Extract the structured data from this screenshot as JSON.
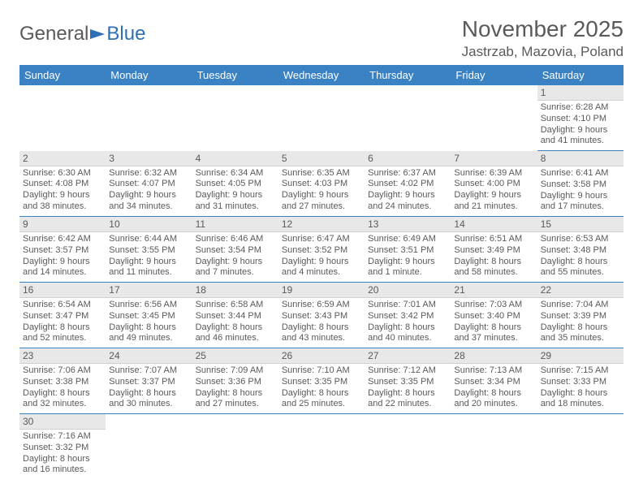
{
  "logo": {
    "text_gray": "General",
    "text_blue": "Blue"
  },
  "title": "November 2025",
  "location": "Jastrzab, Mazovia, Poland",
  "colors": {
    "header_bg": "#3b82c4",
    "header_text": "#ffffff",
    "daynum_bg": "#e8e8e8",
    "text": "#5a5a5a",
    "row_border": "#3b82c4"
  },
  "day_headers": [
    "Sunday",
    "Monday",
    "Tuesday",
    "Wednesday",
    "Thursday",
    "Friday",
    "Saturday"
  ],
  "weeks": [
    [
      null,
      null,
      null,
      null,
      null,
      null,
      {
        "n": "1",
        "sr": "6:28 AM",
        "ss": "4:10 PM",
        "dl": "9 hours and 41 minutes."
      }
    ],
    [
      {
        "n": "2",
        "sr": "6:30 AM",
        "ss": "4:08 PM",
        "dl": "9 hours and 38 minutes."
      },
      {
        "n": "3",
        "sr": "6:32 AM",
        "ss": "4:07 PM",
        "dl": "9 hours and 34 minutes."
      },
      {
        "n": "4",
        "sr": "6:34 AM",
        "ss": "4:05 PM",
        "dl": "9 hours and 31 minutes."
      },
      {
        "n": "5",
        "sr": "6:35 AM",
        "ss": "4:03 PM",
        "dl": "9 hours and 27 minutes."
      },
      {
        "n": "6",
        "sr": "6:37 AM",
        "ss": "4:02 PM",
        "dl": "9 hours and 24 minutes."
      },
      {
        "n": "7",
        "sr": "6:39 AM",
        "ss": "4:00 PM",
        "dl": "9 hours and 21 minutes."
      },
      {
        "n": "8",
        "sr": "6:41 AM",
        "ss": "3:58 PM",
        "dl": "9 hours and 17 minutes."
      }
    ],
    [
      {
        "n": "9",
        "sr": "6:42 AM",
        "ss": "3:57 PM",
        "dl": "9 hours and 14 minutes."
      },
      {
        "n": "10",
        "sr": "6:44 AM",
        "ss": "3:55 PM",
        "dl": "9 hours and 11 minutes."
      },
      {
        "n": "11",
        "sr": "6:46 AM",
        "ss": "3:54 PM",
        "dl": "9 hours and 7 minutes."
      },
      {
        "n": "12",
        "sr": "6:47 AM",
        "ss": "3:52 PM",
        "dl": "9 hours and 4 minutes."
      },
      {
        "n": "13",
        "sr": "6:49 AM",
        "ss": "3:51 PM",
        "dl": "9 hours and 1 minute."
      },
      {
        "n": "14",
        "sr": "6:51 AM",
        "ss": "3:49 PM",
        "dl": "8 hours and 58 minutes."
      },
      {
        "n": "15",
        "sr": "6:53 AM",
        "ss": "3:48 PM",
        "dl": "8 hours and 55 minutes."
      }
    ],
    [
      {
        "n": "16",
        "sr": "6:54 AM",
        "ss": "3:47 PM",
        "dl": "8 hours and 52 minutes."
      },
      {
        "n": "17",
        "sr": "6:56 AM",
        "ss": "3:45 PM",
        "dl": "8 hours and 49 minutes."
      },
      {
        "n": "18",
        "sr": "6:58 AM",
        "ss": "3:44 PM",
        "dl": "8 hours and 46 minutes."
      },
      {
        "n": "19",
        "sr": "6:59 AM",
        "ss": "3:43 PM",
        "dl": "8 hours and 43 minutes."
      },
      {
        "n": "20",
        "sr": "7:01 AM",
        "ss": "3:42 PM",
        "dl": "8 hours and 40 minutes."
      },
      {
        "n": "21",
        "sr": "7:03 AM",
        "ss": "3:40 PM",
        "dl": "8 hours and 37 minutes."
      },
      {
        "n": "22",
        "sr": "7:04 AM",
        "ss": "3:39 PM",
        "dl": "8 hours and 35 minutes."
      }
    ],
    [
      {
        "n": "23",
        "sr": "7:06 AM",
        "ss": "3:38 PM",
        "dl": "8 hours and 32 minutes."
      },
      {
        "n": "24",
        "sr": "7:07 AM",
        "ss": "3:37 PM",
        "dl": "8 hours and 30 minutes."
      },
      {
        "n": "25",
        "sr": "7:09 AM",
        "ss": "3:36 PM",
        "dl": "8 hours and 27 minutes."
      },
      {
        "n": "26",
        "sr": "7:10 AM",
        "ss": "3:35 PM",
        "dl": "8 hours and 25 minutes."
      },
      {
        "n": "27",
        "sr": "7:12 AM",
        "ss": "3:35 PM",
        "dl": "8 hours and 22 minutes."
      },
      {
        "n": "28",
        "sr": "7:13 AM",
        "ss": "3:34 PM",
        "dl": "8 hours and 20 minutes."
      },
      {
        "n": "29",
        "sr": "7:15 AM",
        "ss": "3:33 PM",
        "dl": "8 hours and 18 minutes."
      }
    ],
    [
      {
        "n": "30",
        "sr": "7:16 AM",
        "ss": "3:32 PM",
        "dl": "8 hours and 16 minutes."
      },
      null,
      null,
      null,
      null,
      null,
      null
    ]
  ],
  "labels": {
    "sunrise": "Sunrise: ",
    "sunset": "Sunset: ",
    "daylight": "Daylight: "
  }
}
